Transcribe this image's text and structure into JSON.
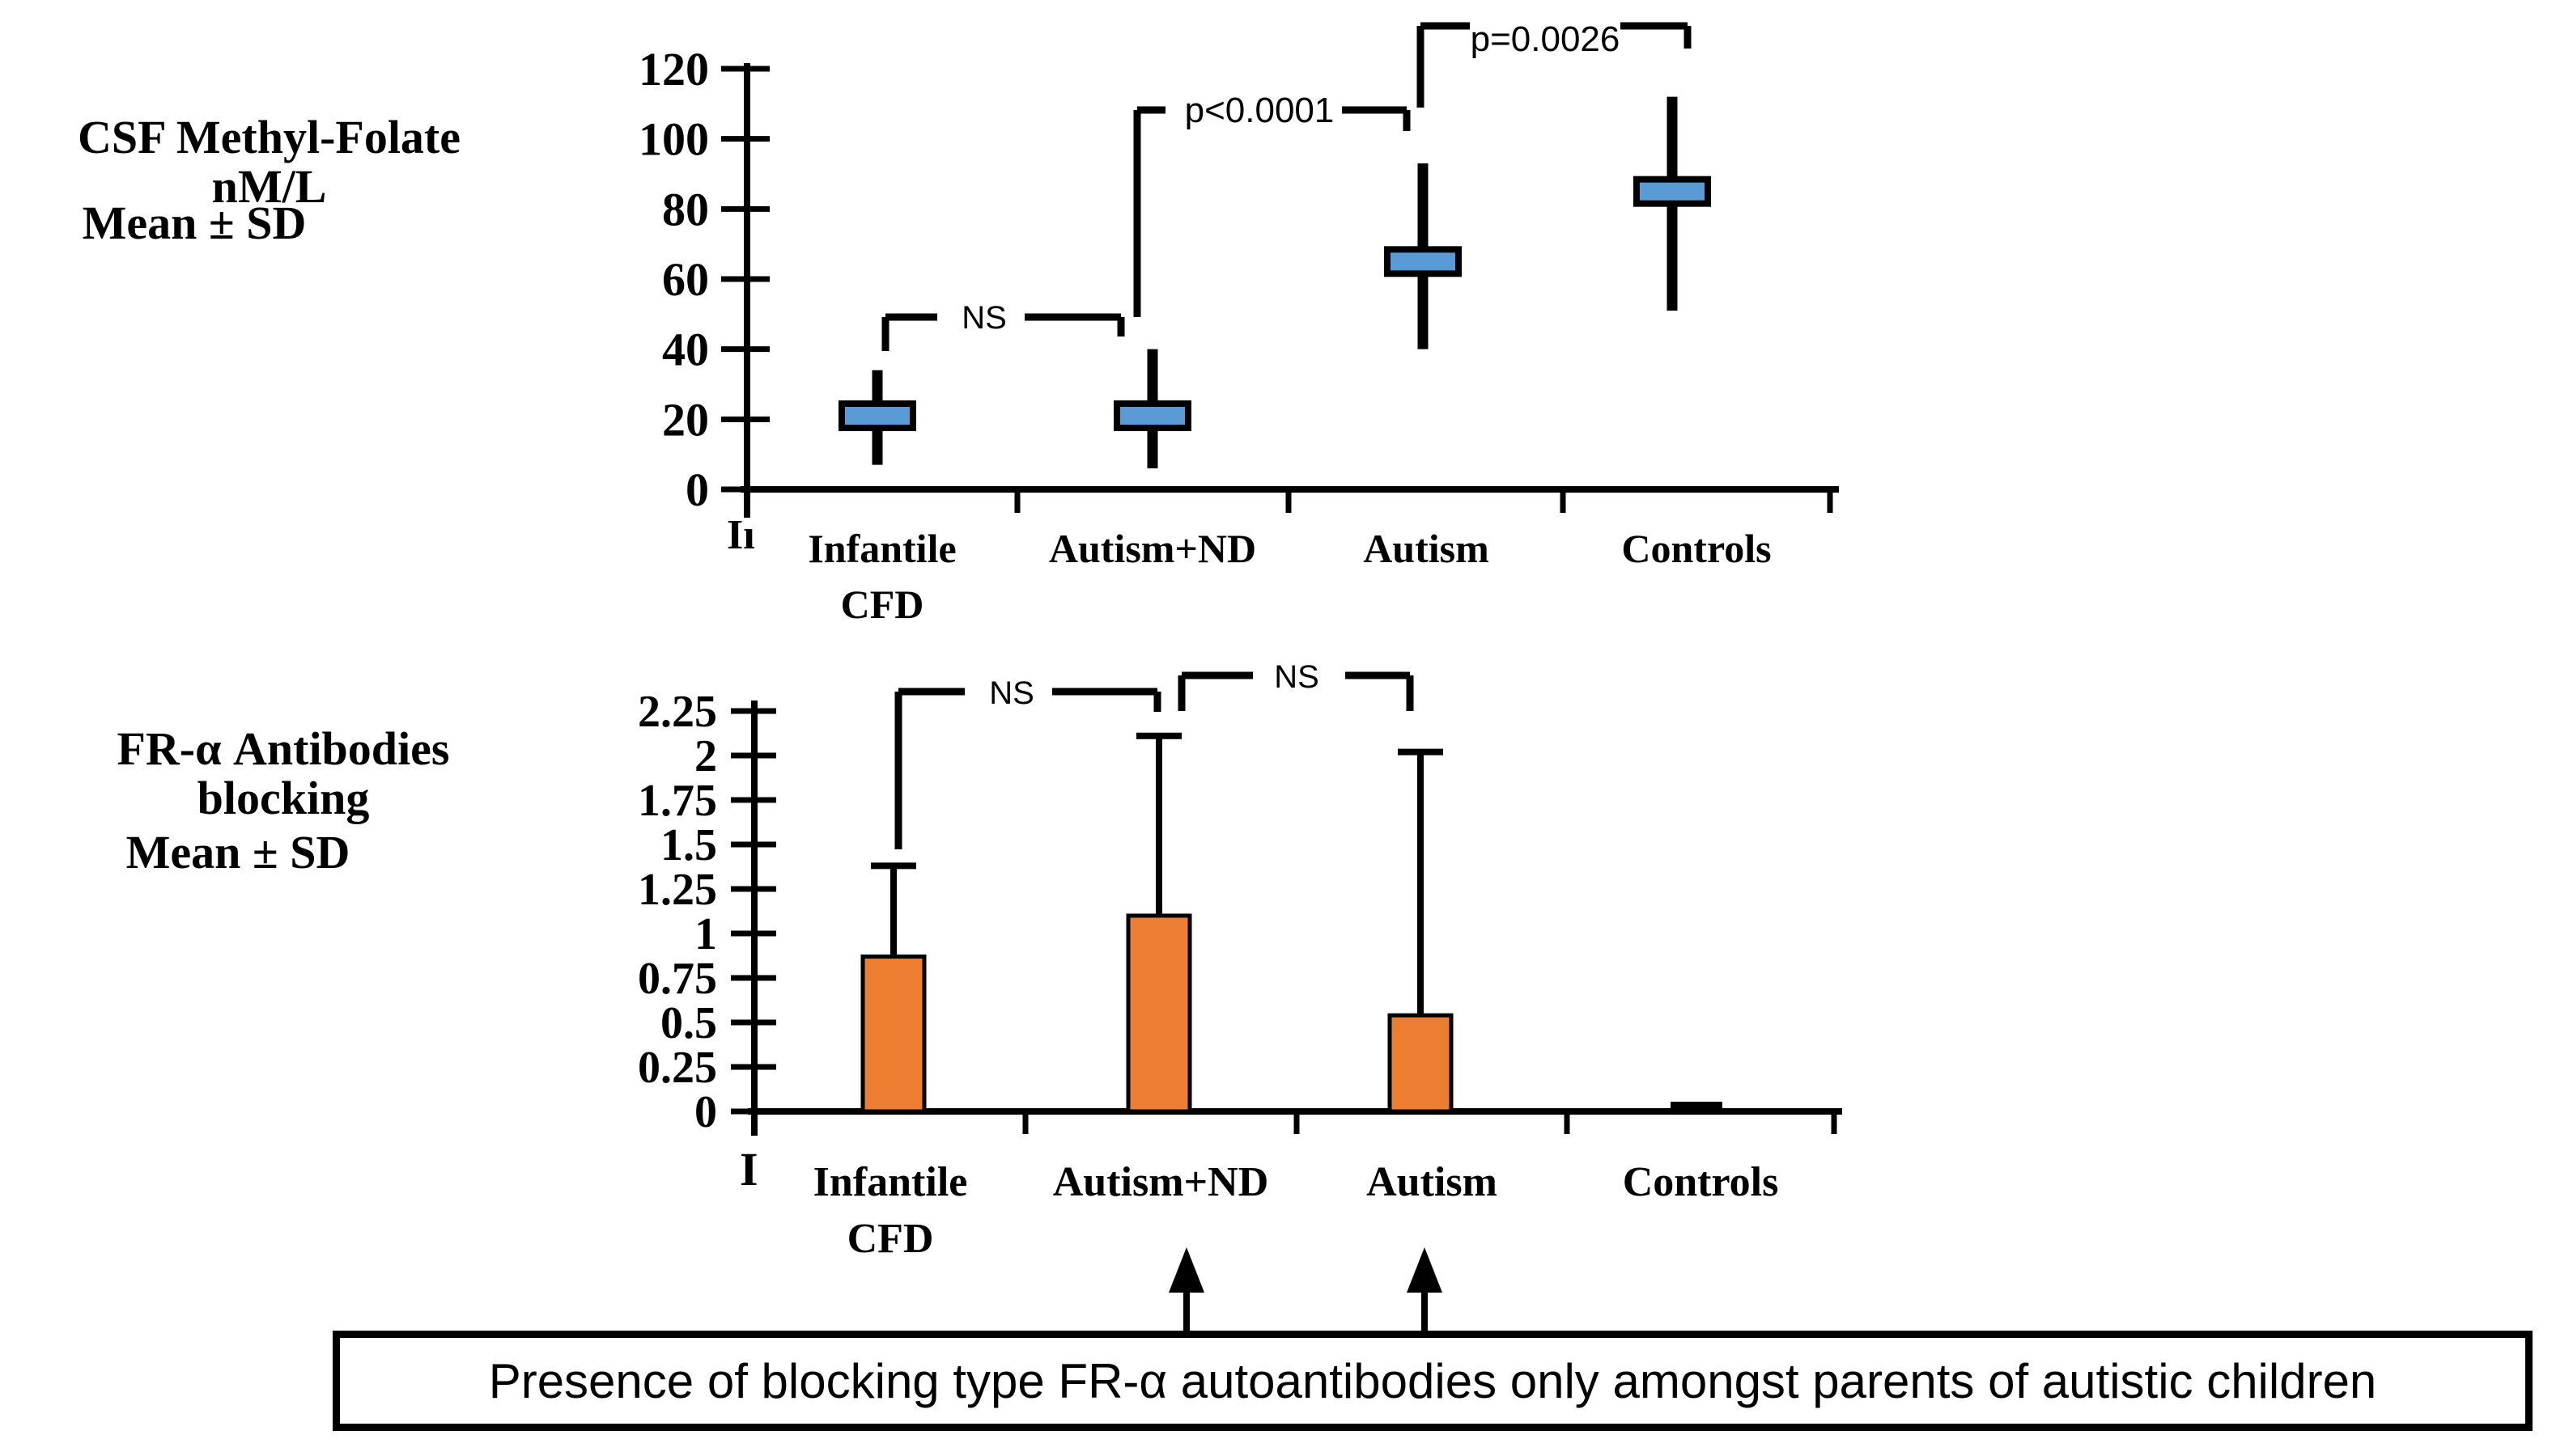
{
  "figure": {
    "background": "#ffffff",
    "top_panel": {
      "title_line1": "CSF Methyl-Folate nM/L",
      "title_line2": "Mean ± SD",
      "stray_mark": "Iı"
    },
    "bottom_panel": {
      "title_line1": "FR-α Antibodies blocking",
      "title_line2": "Mean ± SD",
      "stray_mark": "I"
    },
    "caption": "Presence of blocking type FR-α autoantibodies only amongst parents of autistic children"
  },
  "chart_data": [
    {
      "type": "box",
      "title": "CSF Methyl-Folate nM/L Mean ± SD",
      "ylabel": "CSF Methyl-Folate nM/L",
      "categories": [
        "Infantile CFD",
        "Autism+ND",
        "Autism",
        "Controls"
      ],
      "means": [
        21,
        21,
        65,
        85
      ],
      "sd_low": [
        7,
        6,
        40,
        51
      ],
      "sd_high": [
        34,
        40,
        93,
        112
      ],
      "ylim": [
        0,
        120
      ],
      "yticks": [
        "0",
        "20",
        "40",
        "60",
        "80",
        "100",
        "120"
      ],
      "grid": false,
      "legend": "none",
      "marker_color": "#5b9bd5",
      "line_color": "#000000",
      "annotations": [
        {
          "label": "NS",
          "between": [
            "Infantile CFD",
            "Autism+ND"
          ]
        },
        {
          "label": "p<0.0001",
          "between": [
            "Autism+ND",
            "Autism"
          ]
        },
        {
          "label": "p=0.0026",
          "between": [
            "Autism",
            "Controls"
          ]
        }
      ]
    },
    {
      "type": "bar",
      "title": "FR-α Antibodies blocking Mean ± SD",
      "ylabel": "FR-α Antibodies blocking",
      "categories": [
        "Infantile CFD",
        "Autism+ND",
        "Autism",
        "Controls"
      ],
      "values": [
        0.87,
        1.1,
        0.54,
        0.02
      ],
      "sd_high": [
        1.38,
        2.11,
        2.02,
        null
      ],
      "ylim": [
        0,
        2.25
      ],
      "yticks": [
        "0",
        "0.25",
        "0.5",
        "0.75",
        "1",
        "1.25",
        "1.5",
        "1.75",
        "2",
        "2.25"
      ],
      "grid": false,
      "legend": "none",
      "bar_color": "#ed7d31",
      "line_color": "#000000",
      "annotations": [
        {
          "label": "NS",
          "between": [
            "Infantile CFD",
            "Autism+ND"
          ]
        },
        {
          "label": "NS",
          "between": [
            "Autism+ND",
            "Autism"
          ]
        }
      ],
      "arrows_below": [
        "Autism+ND",
        "Autism"
      ]
    }
  ]
}
